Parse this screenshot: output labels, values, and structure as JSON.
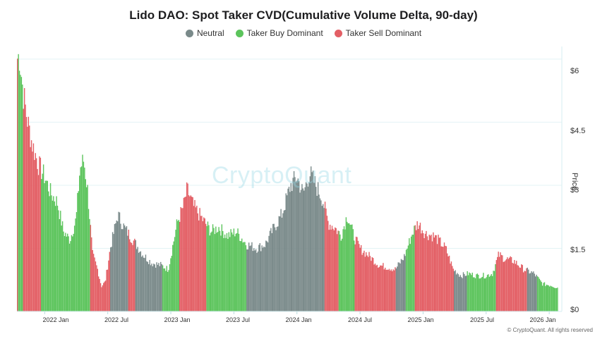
{
  "chart_data": {
    "type": "bar",
    "title": "Lido DAO: Spot Taker CVD(Cumulative Volume Delta, 90-day)",
    "ylabel": "Price",
    "xlabel": "",
    "ylim": [
      0,
      6.3
    ],
    "y_ticks": [
      "$0",
      "$1.5",
      "$3",
      "$4.5",
      "$6"
    ],
    "y_tick_values": [
      0,
      1.5,
      3,
      4.5,
      6
    ],
    "x_ticks": [
      "2022 Jan",
      "2022 Jul",
      "2023 Jan",
      "2023 Jul",
      "2024 Jan",
      "2024 Jul",
      "2025 Jan",
      "2025 Jul",
      "2026 Jan"
    ],
    "x_tick_times": [
      2022.0,
      2022.5,
      2023.0,
      2023.5,
      2024.0,
      2024.5,
      2025.0,
      2025.5,
      2026.0
    ],
    "x_range": [
      2021.78,
      2026.1
    ],
    "legend": [
      {
        "name": "Neutral",
        "color": "#7a8a8a"
      },
      {
        "name": "Taker Buy Dominant",
        "color": "#5cc45c"
      },
      {
        "name": "Taker Sell Dominant",
        "color": "#e35f65"
      }
    ],
    "price_keyframes": [
      [
        2021.78,
        6.0
      ],
      [
        2021.8,
        6.1
      ],
      [
        2021.83,
        5.2
      ],
      [
        2021.86,
        4.6
      ],
      [
        2021.9,
        4.0
      ],
      [
        2021.95,
        3.5
      ],
      [
        2022.0,
        3.2
      ],
      [
        2022.05,
        2.8
      ],
      [
        2022.1,
        2.6
      ],
      [
        2022.15,
        1.9
      ],
      [
        2022.2,
        1.7
      ],
      [
        2022.25,
        2.2
      ],
      [
        2022.28,
        3.4
      ],
      [
        2022.31,
        3.6
      ],
      [
        2022.34,
        2.9
      ],
      [
        2022.38,
        1.35
      ],
      [
        2022.42,
        1.0
      ],
      [
        2022.45,
        0.6
      ],
      [
        2022.48,
        0.7
      ],
      [
        2022.52,
        1.5
      ],
      [
        2022.58,
        2.3
      ],
      [
        2022.63,
        2.0
      ],
      [
        2022.7,
        1.7
      ],
      [
        2022.78,
        1.35
      ],
      [
        2022.85,
        1.15
      ],
      [
        2022.92,
        1.1
      ],
      [
        2022.98,
        1.0
      ],
      [
        2023.05,
        2.1
      ],
      [
        2023.1,
        2.5
      ],
      [
        2023.13,
        2.9
      ],
      [
        2023.18,
        2.5
      ],
      [
        2023.25,
        2.2
      ],
      [
        2023.32,
        1.9
      ],
      [
        2023.38,
        2.0
      ],
      [
        2023.45,
        1.8
      ],
      [
        2023.52,
        1.9
      ],
      [
        2023.6,
        1.6
      ],
      [
        2023.68,
        1.5
      ],
      [
        2023.75,
        1.6
      ],
      [
        2023.82,
        2.0
      ],
      [
        2023.88,
        2.3
      ],
      [
        2023.95,
        3.0
      ],
      [
        2024.0,
        3.2
      ],
      [
        2024.05,
        2.8
      ],
      [
        2024.1,
        3.3
      ],
      [
        2024.15,
        3.0
      ],
      [
        2024.2,
        2.7
      ],
      [
        2024.25,
        2.1
      ],
      [
        2024.3,
        2.0
      ],
      [
        2024.35,
        1.8
      ],
      [
        2024.4,
        2.3
      ],
      [
        2024.45,
        1.8
      ],
      [
        2024.5,
        1.5
      ],
      [
        2024.58,
        1.3
      ],
      [
        2024.65,
        1.1
      ],
      [
        2024.72,
        1.05
      ],
      [
        2024.78,
        1.0
      ],
      [
        2024.85,
        1.3
      ],
      [
        2024.92,
        1.9
      ],
      [
        2024.96,
        2.1
      ],
      [
        2025.02,
        1.85
      ],
      [
        2025.08,
        1.8
      ],
      [
        2025.12,
        1.7
      ],
      [
        2025.18,
        1.5
      ],
      [
        2025.24,
        1.0
      ],
      [
        2025.3,
        0.85
      ],
      [
        2025.36,
        0.9
      ],
      [
        2025.42,
        0.85
      ],
      [
        2025.5,
        0.85
      ],
      [
        2025.55,
        0.9
      ],
      [
        2025.6,
        1.35
      ],
      [
        2025.65,
        1.25
      ],
      [
        2025.72,
        1.2
      ],
      [
        2025.8,
        1.0
      ],
      [
        2025.88,
        0.9
      ],
      [
        2025.95,
        0.65
      ],
      [
        2026.02,
        0.62
      ],
      [
        2026.08,
        0.55
      ]
    ],
    "regime_segments": [
      [
        2021.78,
        2021.79,
        "sell"
      ],
      [
        2021.79,
        2021.83,
        "buy"
      ],
      [
        2021.83,
        2021.91,
        "sell"
      ],
      [
        2021.91,
        2021.97,
        "sell"
      ],
      [
        2021.97,
        2022.13,
        "buy"
      ],
      [
        2022.13,
        2022.26,
        "buy"
      ],
      [
        2022.26,
        2022.33,
        "buy"
      ],
      [
        2022.33,
        2022.36,
        "buy"
      ],
      [
        2022.36,
        2022.52,
        "sell"
      ],
      [
        2022.52,
        2022.6,
        "neutral"
      ],
      [
        2022.6,
        2022.66,
        "neutral"
      ],
      [
        2022.66,
        2022.72,
        "sell"
      ],
      [
        2022.72,
        2022.93,
        "neutral"
      ],
      [
        2022.93,
        2023.02,
        "buy"
      ],
      [
        2023.02,
        2023.07,
        "buy"
      ],
      [
        2023.07,
        2023.28,
        "sell"
      ],
      [
        2023.28,
        2023.44,
        "buy"
      ],
      [
        2023.44,
        2023.6,
        "buy"
      ],
      [
        2023.6,
        2023.8,
        "neutral"
      ],
      [
        2023.8,
        2024.22,
        "neutral"
      ],
      [
        2024.22,
        2024.28,
        "sell"
      ],
      [
        2024.28,
        2024.33,
        "sell"
      ],
      [
        2024.33,
        2024.46,
        "buy"
      ],
      [
        2024.46,
        2024.58,
        "sell"
      ],
      [
        2024.58,
        2024.78,
        "sell"
      ],
      [
        2024.78,
        2024.86,
        "neutral"
      ],
      [
        2024.86,
        2024.93,
        "buy"
      ],
      [
        2024.93,
        2025.15,
        "sell"
      ],
      [
        2025.15,
        2025.24,
        "sell"
      ],
      [
        2025.24,
        2025.35,
        "neutral"
      ],
      [
        2025.35,
        2025.43,
        "buy"
      ],
      [
        2025.43,
        2025.5,
        "buy"
      ],
      [
        2025.5,
        2025.58,
        "buy"
      ],
      [
        2025.58,
        2025.82,
        "sell"
      ],
      [
        2025.82,
        2025.9,
        "neutral"
      ],
      [
        2025.9,
        2026.1,
        "buy"
      ]
    ]
  },
  "branding": {
    "watermark": "CryptoQuant",
    "copyright": "© CryptoQuant. All rights reserved"
  }
}
